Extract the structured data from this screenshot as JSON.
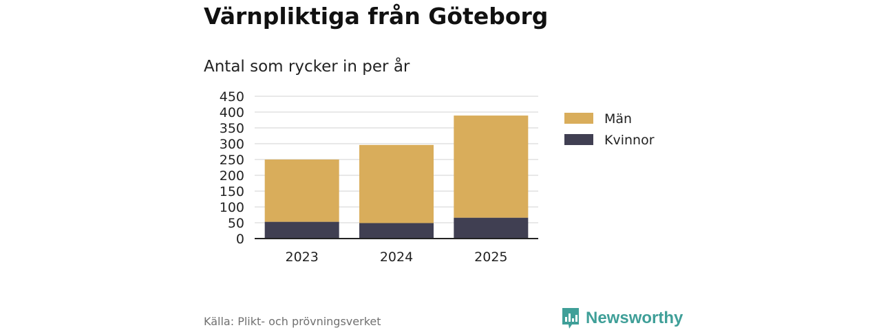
{
  "title": "Värnpliktiga från Göteborg",
  "subtitle": "Antal som rycker in per år",
  "source": "Källa: Plikt- och prövningsverket",
  "brand": {
    "name": "Newsworthy",
    "icon": "newsworthy-logo-icon"
  },
  "colors": {
    "men": "#d9ad5b",
    "women": "#403f52",
    "brand": "#3f9f98",
    "grid": "#d9d9d9",
    "axis": "#222222"
  },
  "chart_data": {
    "type": "bar",
    "stacked": true,
    "categories": [
      "2023",
      "2024",
      "2025"
    ],
    "series": [
      {
        "name": "Kvinnor",
        "values": [
          53,
          49,
          66
        ]
      },
      {
        "name": "Män",
        "values": [
          197,
          247,
          323
        ]
      }
    ],
    "legend": [
      "Män",
      "Kvinnor"
    ],
    "yticks": [
      "0",
      "50",
      "100",
      "150",
      "200",
      "250",
      "300",
      "350",
      "400",
      "450"
    ],
    "ylim": [
      0,
      450
    ],
    "grid": true,
    "legend_position": "right"
  }
}
